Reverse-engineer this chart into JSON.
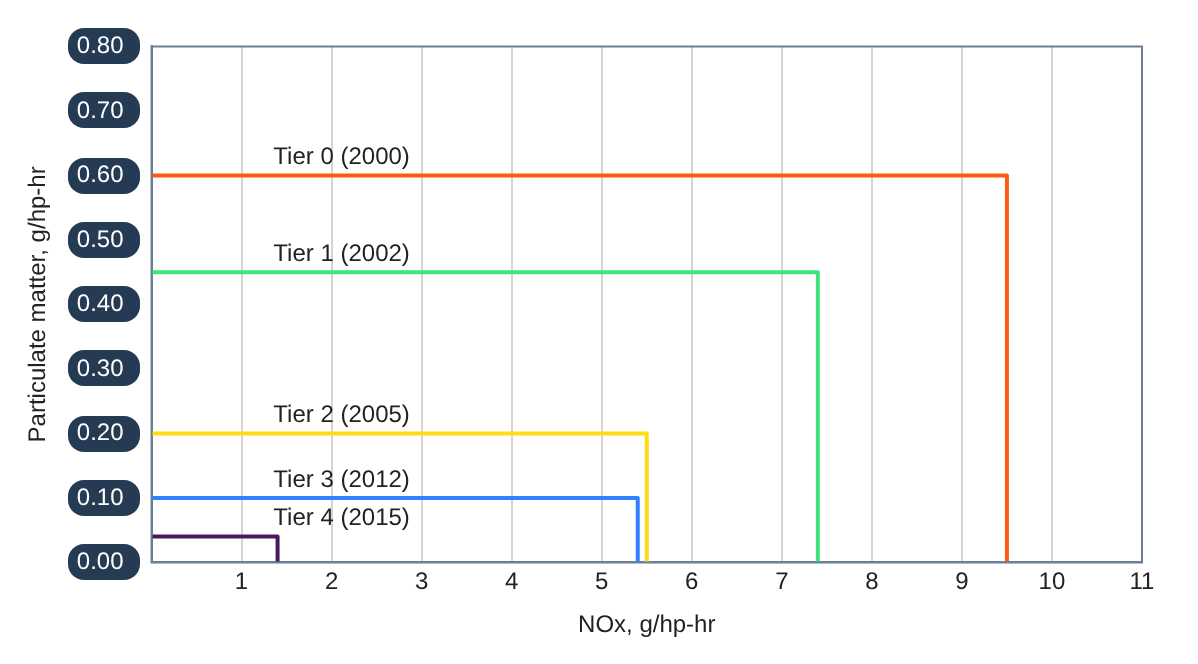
{
  "chart_data": {
    "type": "line",
    "xlabel": "NOx, g/hp-hr",
    "ylabel": "Particulate matter, g/hp-hr",
    "series": [
      {
        "name": "Tier 0 (2000)",
        "color": "#ff5a14",
        "x": [
          0,
          9.5,
          9.5
        ],
        "values": [
          0.6,
          0.6,
          0
        ]
      },
      {
        "name": "Tier 1 (2002)",
        "color": "#3de57a",
        "x": [
          0,
          7.4,
          7.4
        ],
        "values": [
          0.45,
          0.45,
          0
        ]
      },
      {
        "name": "Tier 2 (2005)",
        "color": "#ffdc14",
        "x": [
          0,
          5.5,
          5.5
        ],
        "values": [
          0.2,
          0.2,
          0
        ]
      },
      {
        "name": "Tier 3 (2012)",
        "color": "#2e82ff",
        "x": [
          0,
          5.4,
          5.4
        ],
        "values": [
          0.1,
          0.1,
          0
        ]
      },
      {
        "name": "Tier 4 (2015)",
        "color": "#4a1a5c",
        "x": [
          0,
          1.4,
          1.4
        ],
        "values": [
          0.04,
          0.04,
          0
        ]
      }
    ],
    "xlim": [
      0,
      11
    ],
    "xticks": [
      {
        "value": 0,
        "label": null
      },
      1,
      2,
      3,
      4,
      5,
      6,
      7,
      8,
      9,
      10,
      11
    ],
    "ylim": [
      0,
      0.8
    ],
    "yticks": [
      {
        "value": 0,
        "label": "0.00"
      },
      {
        "value": 0.1,
        "label": "0.10"
      },
      {
        "value": 0.2,
        "label": "0.20"
      },
      {
        "value": 0.3,
        "label": "0.30"
      },
      {
        "value": 0.4,
        "label": "0.40"
      },
      {
        "value": 0.5,
        "label": "0.50"
      },
      {
        "value": 0.6,
        "label": "0.60"
      },
      {
        "value": 0.7,
        "label": "0.70"
      },
      {
        "value": 0.8,
        "label": "0.80"
      }
    ],
    "grid": "x",
    "marker": "none",
    "line_style": "solid",
    "legend": false
  }
}
